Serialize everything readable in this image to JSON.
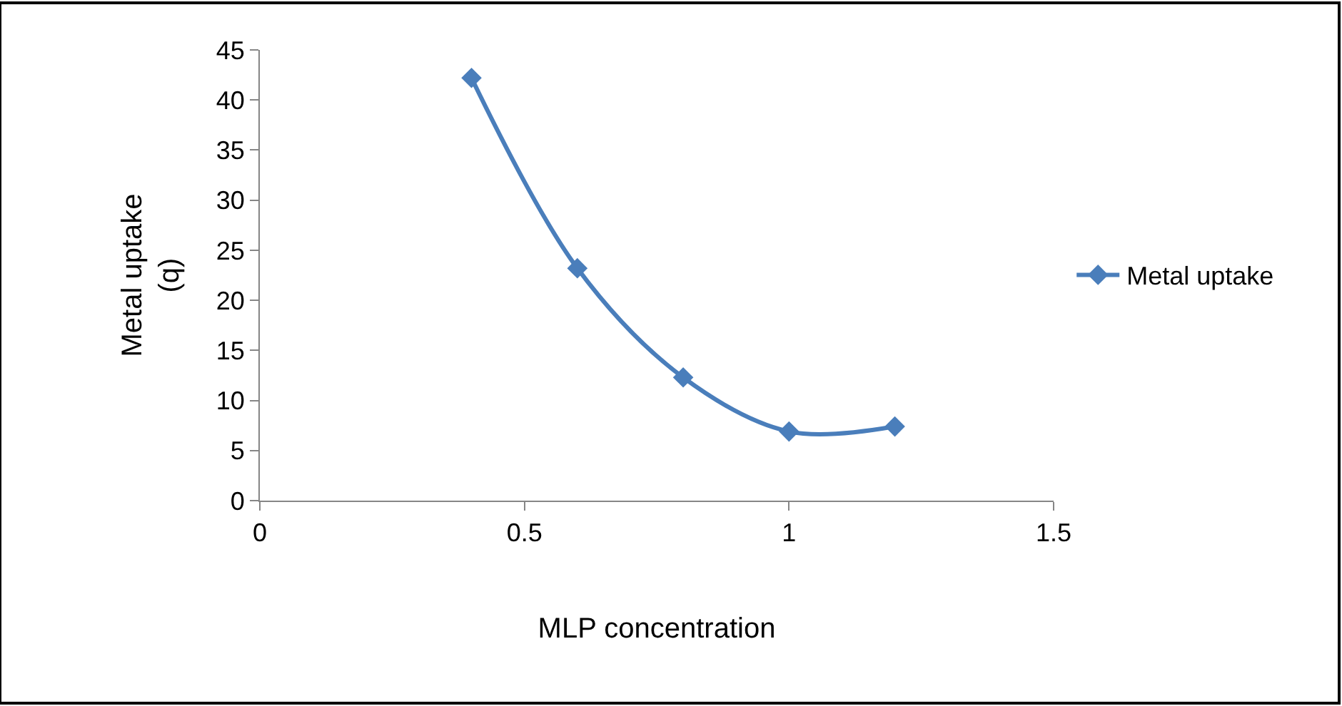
{
  "chart_data": {
    "type": "line",
    "xlabel": "MLP concentration",
    "ylabel": "Metal uptake\n(q)",
    "x": [
      0.4,
      0.6,
      0.8,
      1.0,
      1.2
    ],
    "series": [
      {
        "name": "Metal uptake",
        "color": "#4a7ebb",
        "values": [
          42.2,
          23.2,
          12.3,
          6.9,
          7.4
        ]
      }
    ],
    "xlim": [
      0,
      1.5
    ],
    "xticks": [
      0,
      0.5,
      1,
      1.5
    ],
    "ylim": [
      0,
      45
    ],
    "yticks": [
      0,
      5,
      10,
      15,
      20,
      25,
      30,
      35,
      40,
      45
    ],
    "legend": "right",
    "marker": "diamond",
    "line_style": "solid"
  }
}
